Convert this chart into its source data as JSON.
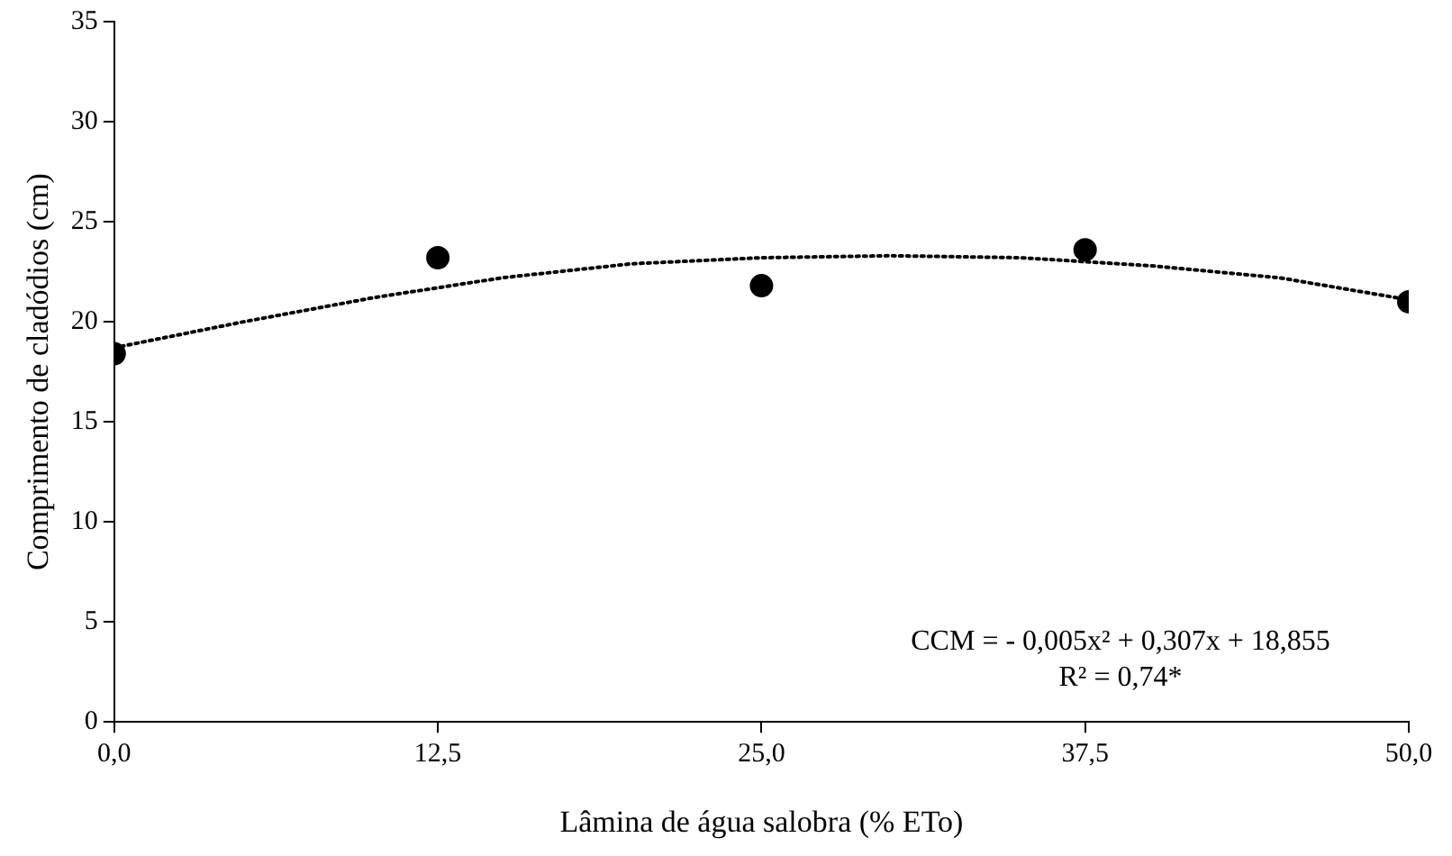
{
  "chart_data": {
    "type": "scatter",
    "xlabel": "Lâmina de água salobra (% ETo)",
    "ylabel": "Comprimento de cladódios (cm)",
    "xlim": [
      0,
      50
    ],
    "xticks": [
      {
        "value": 0,
        "label": "0,0"
      },
      {
        "value": 12.5,
        "label": "12,5"
      },
      {
        "value": 25,
        "label": "25,0"
      },
      {
        "value": 37.5,
        "label": "37,5"
      },
      {
        "value": 50,
        "label": "50,0"
      }
    ],
    "ylim": [
      0,
      35
    ],
    "yticks": [
      0,
      5,
      10,
      15,
      20,
      25,
      30,
      35
    ],
    "grid": false,
    "legend": false,
    "series": [
      {
        "color": "#000000",
        "marker": "circle",
        "x": [
          0,
          12.5,
          25,
          37.5,
          50
        ],
        "values": [
          18.4,
          23.2,
          21.8,
          23.6,
          21.0
        ]
      },
      {
        "type": "line",
        "color": "#000000",
        "marker": "none",
        "line_style": "dotted",
        "x": [
          0,
          5,
          10,
          15,
          20,
          25,
          30,
          35,
          40,
          45,
          50
        ],
        "values": [
          18.7,
          20.0,
          21.2,
          22.2,
          22.9,
          23.2,
          23.3,
          23.2,
          22.8,
          22.2,
          21.1
        ]
      }
    ],
    "annotations": [
      "CCM = - 0,005x² + 0,307x + 18,855",
      "R² = 0,74*"
    ]
  }
}
